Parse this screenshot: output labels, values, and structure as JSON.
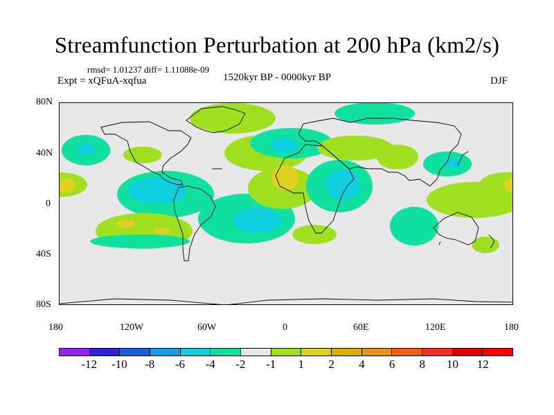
{
  "title": "Streamfunction Perturbation at 200 hPa (km2/s)",
  "stats": "rmsd= 1.01237 diff= 1.11088e-09",
  "experiment": "Expt = xQFuA-xqfua",
  "period": "1520kyr BP - 0000kyr BP",
  "season": "DJF",
  "axes": {
    "lat_labels": [
      "80N",
      "40N",
      "0",
      "40S",
      "80S"
    ],
    "lon_labels": [
      "180",
      "120W",
      "60W",
      "0",
      "60E",
      "120E",
      "180"
    ]
  },
  "legend": {
    "labels": [
      "-12",
      "-10",
      "-8",
      "-6",
      "-4",
      "-2",
      "-1",
      "1",
      "2",
      "4",
      "6",
      "8",
      "10",
      "12"
    ],
    "colors": [
      "#9a20f0",
      "#3020d8",
      "#1060e0",
      "#10a0e8",
      "#10d0e0",
      "#10e0a0",
      "#e8e8e8",
      "#a0e020",
      "#e0d020",
      "#e0b000",
      "#f09010",
      "#f06010",
      "#f03020",
      "#e00000",
      "#ff0000"
    ]
  },
  "features": [
    {
      "name": "positive anomaly over Greenland",
      "level": "1"
    },
    {
      "name": "negative anomaly over North Atlantic",
      "level": "-2"
    },
    {
      "name": "positive anomaly over tropical Atlantic",
      "level": "2"
    },
    {
      "name": "negative anomaly over Arabia",
      "level": "-4"
    }
  ]
}
